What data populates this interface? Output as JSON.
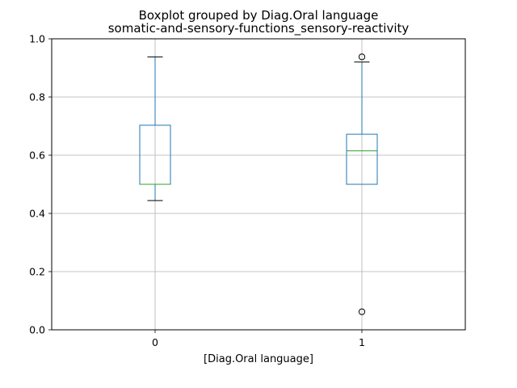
{
  "chart_data": {
    "type": "boxplot",
    "suptitle": "Boxplot grouped by Diag.Oral language",
    "title": "somatic-and-sensory-functions_sensory-reactivity",
    "xlabel": "[Diag.Oral language]",
    "ylabel": "",
    "ylim": [
      0.0,
      1.0
    ],
    "yticks": [
      0.0,
      0.2,
      0.4,
      0.6,
      0.8,
      1.0
    ],
    "ytick_labels": [
      "0.0",
      "0.2",
      "0.4",
      "0.6",
      "0.8",
      "1.0"
    ],
    "grid": true,
    "categories": [
      "0",
      "1"
    ],
    "boxes": [
      {
        "category": "0",
        "whisker_low": 0.444,
        "q1": 0.5,
        "median": 0.5,
        "q3": 0.703,
        "whisker_high": 0.938,
        "outliers": []
      },
      {
        "category": "1",
        "whisker_low": 0.5,
        "q1": 0.5,
        "median": 0.615,
        "q3": 0.672,
        "whisker_high": 0.92,
        "outliers": [
          0.938,
          0.062
        ]
      }
    ],
    "colors": {
      "box": "#1f77b4",
      "median": "#2ca02c",
      "whisker_cap": "#000000",
      "grid": "#b0b0b0"
    }
  }
}
